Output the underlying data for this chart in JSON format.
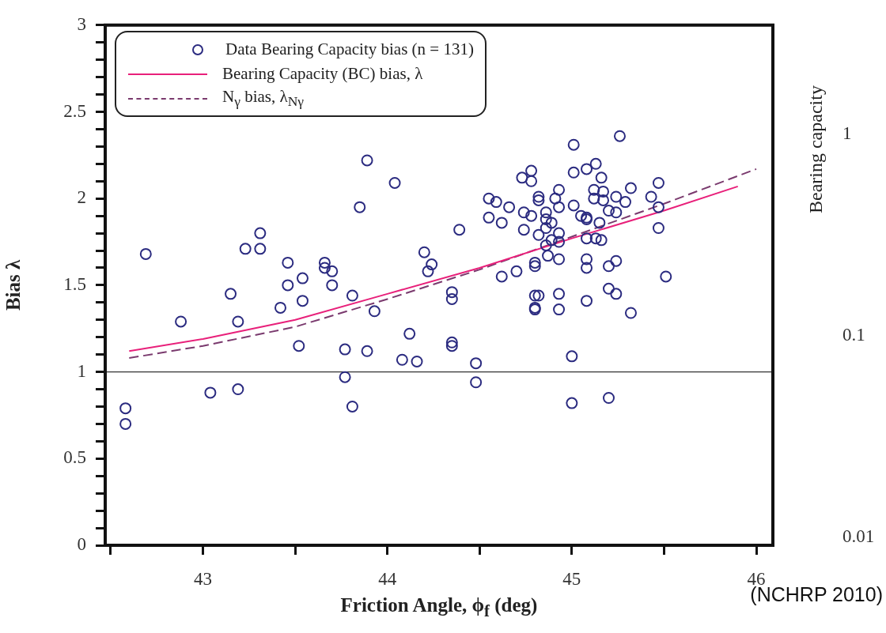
{
  "chart_data": {
    "type": "scatter",
    "xlabel": "Friction Angle, ϕ$_{f}$ (deg)",
    "ylabel": "Bias λ",
    "y2label": "Bearing capacity",
    "annotations": [
      "(NCHRP 2010)"
    ],
    "xlim": [
      42.47,
      46.09
    ],
    "xticks": [
      {
        "value": 42.5,
        "label": null
      },
      43,
      {
        "value": 43.5,
        "label": null
      },
      44,
      {
        "value": 44.5,
        "label": null
      },
      45,
      {
        "value": 45.5,
        "label": null
      },
      46
    ],
    "ylim": [
      0,
      3
    ],
    "yticks": [
      0,
      {
        "value": 0.1,
        "label": null
      },
      {
        "value": 0.2,
        "label": null
      },
      {
        "value": 0.3,
        "label": null
      },
      {
        "value": 0.4,
        "label": null
      },
      0.5,
      {
        "value": 0.6,
        "label": null
      },
      {
        "value": 0.7,
        "label": null
      },
      {
        "value": 0.8,
        "label": null
      },
      {
        "value": 0.9,
        "label": null
      },
      1,
      {
        "value": 1.1,
        "label": null
      },
      {
        "value": 1.2,
        "label": null
      },
      {
        "value": 1.3,
        "label": null
      },
      {
        "value": 1.4,
        "label": null
      },
      1.5,
      {
        "value": 1.6,
        "label": null
      },
      {
        "value": 1.7,
        "label": null
      },
      {
        "value": 1.8,
        "label": null
      },
      {
        "value": 1.9,
        "label": null
      },
      2,
      {
        "value": 2.1,
        "label": null
      },
      {
        "value": 2.2,
        "label": null
      },
      {
        "value": 2.3,
        "label": null
      },
      {
        "value": 2.4,
        "label": null
      },
      2.5,
      {
        "value": 2.6,
        "label": null
      },
      {
        "value": 2.7,
        "label": null
      },
      {
        "value": 2.8,
        "label": null
      },
      {
        "value": 2.9,
        "label": null
      },
      3
    ],
    "y2lim": [
      0.0091,
      3.5
    ],
    "y2ticks": [
      0.01,
      0.1,
      1
    ],
    "log": "y2",
    "grid": false,
    "legend": "top left",
    "ref_lines": [
      {
        "axis": "y",
        "value": 1,
        "color": "#333333"
      }
    ],
    "series": [
      {
        "name": "Data Bearing Capacity bias (n = 131)",
        "type": "scatter",
        "marker": "circle",
        "color": "#2b2b80",
        "x": [
          42.69,
          42.88,
          43.15,
          43.23,
          43.31,
          43.31,
          43.19,
          43.46,
          43.46,
          43.54,
          43.54,
          43.42,
          43.66,
          43.66,
          43.7,
          43.7,
          43.52,
          43.04,
          43.19,
          42.58,
          42.58,
          43.89,
          44.04,
          43.85,
          44.39,
          44.55,
          44.59,
          44.66,
          44.55,
          44.62,
          44.2,
          44.24,
          44.22,
          44.62,
          44.7,
          43.81,
          43.93,
          44.35,
          44.35,
          44.12,
          44.35,
          44.35,
          43.77,
          43.89,
          44.08,
          44.16,
          44.48,
          43.77,
          44.48,
          43.81,
          45.01,
          45.26,
          44.78,
          44.73,
          44.78,
          45.01,
          45.08,
          45.13,
          45.16,
          45.12,
          45.17,
          45.12,
          45.17,
          45.24,
          45.29,
          45.32,
          45.43,
          45.47,
          45.47,
          45.47,
          45.51,
          44.93,
          44.91,
          44.93,
          44.82,
          44.82,
          45.01,
          44.74,
          44.78,
          44.74,
          44.86,
          44.86,
          44.89,
          44.82,
          44.86,
          44.93,
          44.89,
          44.93,
          44.86,
          44.87,
          44.93,
          44.8,
          44.8,
          45.05,
          45.08,
          45.08,
          45.15,
          45.2,
          45.24,
          45.08,
          45.13,
          45.16,
          45.08,
          45.08,
          45.2,
          45.24,
          44.8,
          44.82,
          44.8,
          44.8,
          44.93,
          44.93,
          45.08,
          45.2,
          45.24,
          45.32,
          45.0,
          45.0,
          45.2
        ],
        "values": [
          1.68,
          1.29,
          1.45,
          1.71,
          1.8,
          1.71,
          1.29,
          1.63,
          1.5,
          1.54,
          1.41,
          1.37,
          1.63,
          1.6,
          1.58,
          1.5,
          1.15,
          0.88,
          0.9,
          0.79,
          0.7,
          2.22,
          2.09,
          1.95,
          1.82,
          2.0,
          1.98,
          1.95,
          1.89,
          1.86,
          1.69,
          1.62,
          1.58,
          1.55,
          1.58,
          1.44,
          1.35,
          1.46,
          1.42,
          1.22,
          1.17,
          1.15,
          1.13,
          1.12,
          1.07,
          1.06,
          1.05,
          0.97,
          0.94,
          0.8,
          2.31,
          2.36,
          2.16,
          2.12,
          2.1,
          2.15,
          2.17,
          2.2,
          2.12,
          2.05,
          2.04,
          2.0,
          1.99,
          2.01,
          1.98,
          2.06,
          2.01,
          2.09,
          1.95,
          1.83,
          1.55,
          2.05,
          2.0,
          1.95,
          2.01,
          1.99,
          1.96,
          1.92,
          1.9,
          1.82,
          1.92,
          1.88,
          1.86,
          1.79,
          1.83,
          1.8,
          1.76,
          1.75,
          1.73,
          1.67,
          1.65,
          1.63,
          1.61,
          1.9,
          1.89,
          1.88,
          1.86,
          1.93,
          1.92,
          1.77,
          1.77,
          1.76,
          1.65,
          1.6,
          1.61,
          1.64,
          1.44,
          1.44,
          1.37,
          1.36,
          1.45,
          1.36,
          1.41,
          1.48,
          1.45,
          1.34,
          1.09,
          0.82,
          0.85
        ]
      },
      {
        "name": "Bearing Capacity (BC) bias, λ",
        "type": "line",
        "marker": "none",
        "color": "#e8207a",
        "line_style": "solid",
        "x": [
          42.6,
          43,
          43.5,
          44,
          44.5,
          45,
          45.5,
          45.9
        ],
        "values": [
          1.12,
          1.19,
          1.3,
          1.45,
          1.6,
          1.77,
          1.93,
          2.07
        ]
      },
      {
        "name": "N$_{γ}$ bias, λ$_{Nγ}$",
        "type": "line",
        "marker": "none",
        "color": "#7a3a6e",
        "line_style": "dashed",
        "x": [
          42.6,
          43,
          43.5,
          44,
          44.5,
          45,
          45.5,
          46
        ],
        "values": [
          1.08,
          1.15,
          1.26,
          1.42,
          1.59,
          1.78,
          1.97,
          2.17
        ]
      }
    ]
  }
}
